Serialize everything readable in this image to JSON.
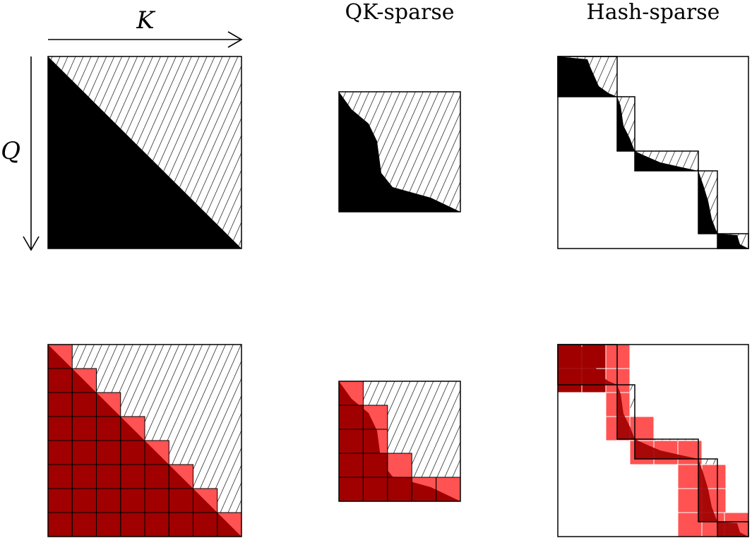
{
  "labels": {
    "axis_k": "K",
    "axis_q": "Q",
    "col_qk": "QK-sparse",
    "col_hash": "Hash-sparse"
  },
  "colors": {
    "mask": "#000000",
    "block_dark": "#a00000",
    "block_light": "#ff5252",
    "hatch": "#000000",
    "border": "#000000",
    "background": "#ffffff"
  }
}
